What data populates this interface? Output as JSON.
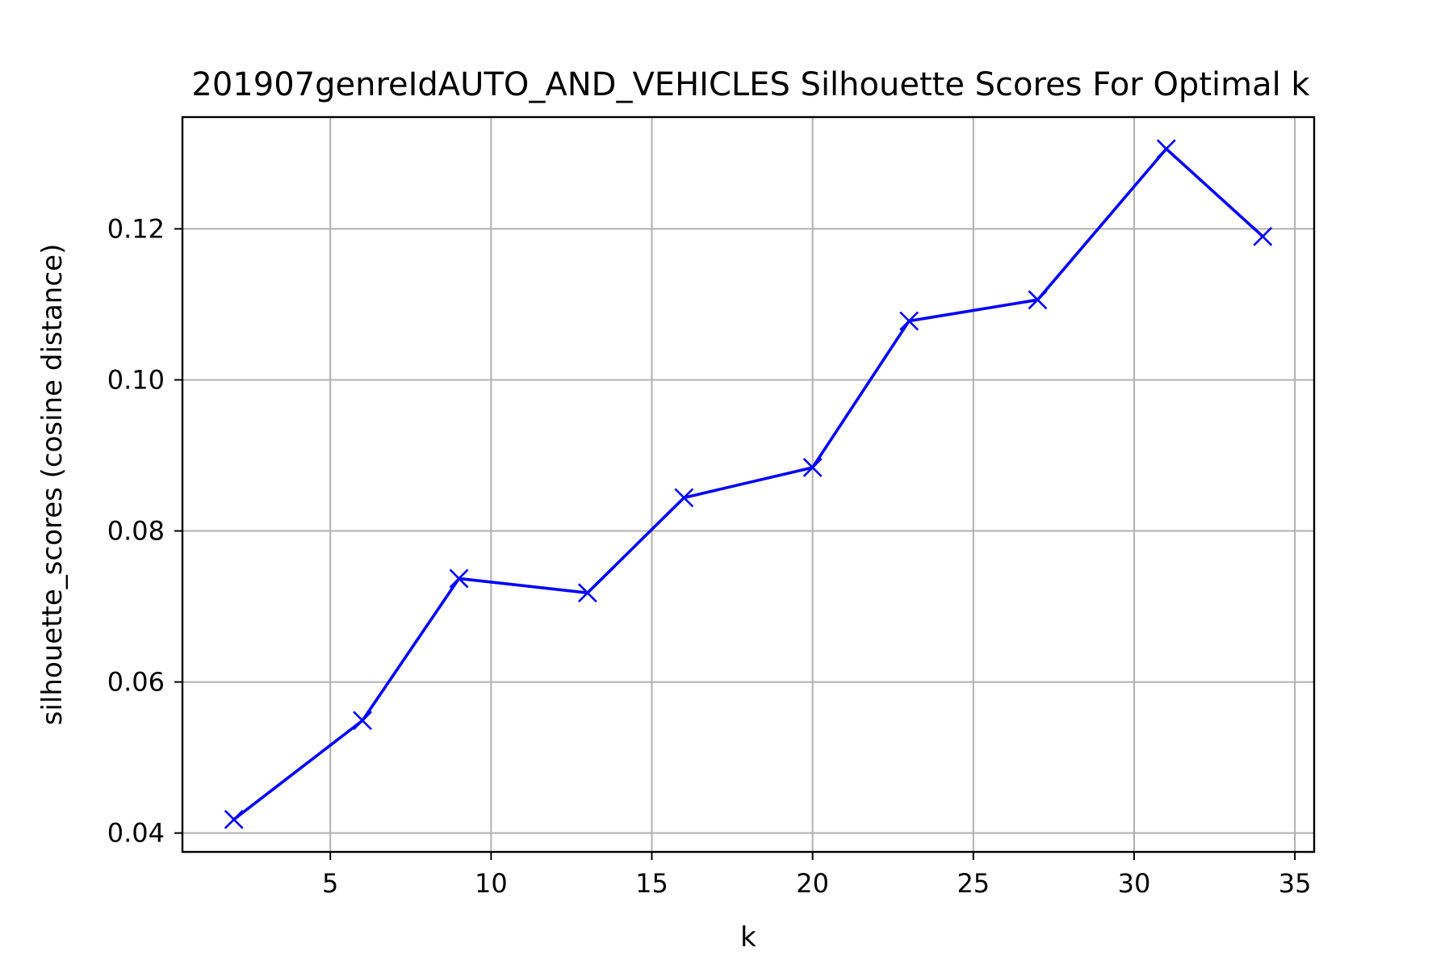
{
  "chart_data": {
    "type": "line",
    "title": "201907genreIdAUTO_AND_VEHICLES Silhouette Scores For Optimal k",
    "xlabel": "k",
    "ylabel": "silhouette_scores (cosine distance)",
    "xlim": [
      0.4,
      35.6
    ],
    "ylim": [
      0.0375,
      0.1348
    ],
    "xticks": [
      5,
      10,
      15,
      20,
      25,
      30,
      35
    ],
    "xtick_labels": [
      "5",
      "10",
      "15",
      "20",
      "25",
      "30",
      "35"
    ],
    "yticks": [
      0.04,
      0.06,
      0.08,
      0.1,
      0.12
    ],
    "ytick_labels": [
      "0.04",
      "0.06",
      "0.08",
      "0.10",
      "0.12"
    ],
    "grid": true,
    "legend": false,
    "series": [
      {
        "x": [
          2,
          6,
          9,
          13,
          16,
          20,
          23,
          27,
          31,
          34
        ],
        "values": [
          0.0418,
          0.0549,
          0.0737,
          0.0718,
          0.0844,
          0.0884,
          0.1078,
          0.1106,
          0.1306,
          0.119
        ],
        "color": "#0000ff",
        "marker": "x"
      }
    ]
  }
}
